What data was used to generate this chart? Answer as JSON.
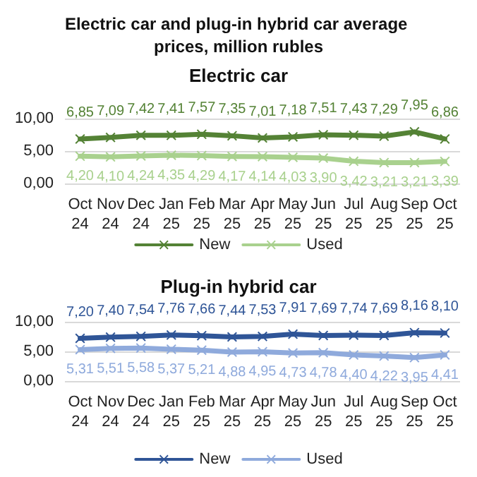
{
  "chart_data": [
    {
      "type": "line",
      "title": "Electric car and plug-in hybrid car average prices, million rubles",
      "subtitle": "Electric car",
      "categories": [
        "Oct 24",
        "Nov 24",
        "Dec 24",
        "Jan 25",
        "Feb 25",
        "Mar 25",
        "Apr 25",
        "May 25",
        "Jun 25",
        "Jul 25",
        "Aug 25",
        "Sep 25",
        "Oct 25"
      ],
      "series": [
        {
          "name": "New",
          "color": "#548235",
          "values": [
            6.85,
            7.09,
            7.42,
            7.41,
            7.57,
            7.35,
            7.01,
            7.18,
            7.51,
            7.43,
            7.29,
            7.95,
            6.86
          ],
          "value_labels": [
            "6,85",
            "7,09",
            "7,42",
            "7,41",
            "7,57",
            "7,35",
            "7,01",
            "7,18",
            "7,51",
            "7,43",
            "7,29",
            "7,95",
            "6,86"
          ]
        },
        {
          "name": "Used",
          "color": "#a9d18e",
          "values": [
            4.2,
            4.1,
            4.24,
            4.35,
            4.29,
            4.17,
            4.14,
            4.03,
            3.9,
            3.42,
            3.21,
            3.21,
            3.39
          ],
          "value_labels": [
            "4,20",
            "4,10",
            "4,24",
            "4,35",
            "4,29",
            "4,17",
            "4,14",
            "4,03",
            "3,90",
            "3,42",
            "3,21",
            "3,21",
            "3,39"
          ]
        }
      ],
      "ylim": [
        0,
        10
      ],
      "yticks": [
        {
          "value": 0,
          "label": "0,00"
        },
        {
          "value": 5,
          "label": "5,00"
        },
        {
          "value": 10,
          "label": "10,00"
        }
      ],
      "grid": "y",
      "legend": "bottom",
      "marker": "cross",
      "line_style": "solid"
    },
    {
      "type": "line",
      "title": "Plug-in hybrid car",
      "categories": [
        "Oct 24",
        "Nov 24",
        "Dec 24",
        "Jan 25",
        "Feb 25",
        "Mar 25",
        "Apr 25",
        "May 25",
        "Jun 25",
        "Jul 25",
        "Aug 25",
        "Sep 25",
        "Oct 25"
      ],
      "series": [
        {
          "name": "New",
          "color": "#2f5597",
          "values": [
            7.2,
            7.4,
            7.54,
            7.76,
            7.66,
            7.44,
            7.53,
            7.91,
            7.69,
            7.74,
            7.69,
            8.16,
            8.1
          ],
          "value_labels": [
            "7,20",
            "7,40",
            "7,54",
            "7,76",
            "7,66",
            "7,44",
            "7,53",
            "7,91",
            "7,69",
            "7,74",
            "7,69",
            "8,16",
            "8,10"
          ]
        },
        {
          "name": "Used",
          "color": "#8faadc",
          "values": [
            5.31,
            5.51,
            5.58,
            5.37,
            5.21,
            4.88,
            4.95,
            4.73,
            4.78,
            4.4,
            4.22,
            3.95,
            4.41
          ],
          "value_labels": [
            "5,31",
            "5,51",
            "5,58",
            "5,37",
            "5,21",
            "4,88",
            "4,95",
            "4,73",
            "4,78",
            "4,40",
            "4,22",
            "3,95",
            "4,41"
          ]
        }
      ],
      "ylim": [
        0,
        10
      ],
      "yticks": [
        {
          "value": 0,
          "label": "0,00"
        },
        {
          "value": 5,
          "label": "5,00"
        },
        {
          "value": 10,
          "label": "10,00"
        }
      ],
      "grid": "y",
      "legend": "bottom",
      "marker": "cross",
      "line_style": "solid"
    }
  ]
}
